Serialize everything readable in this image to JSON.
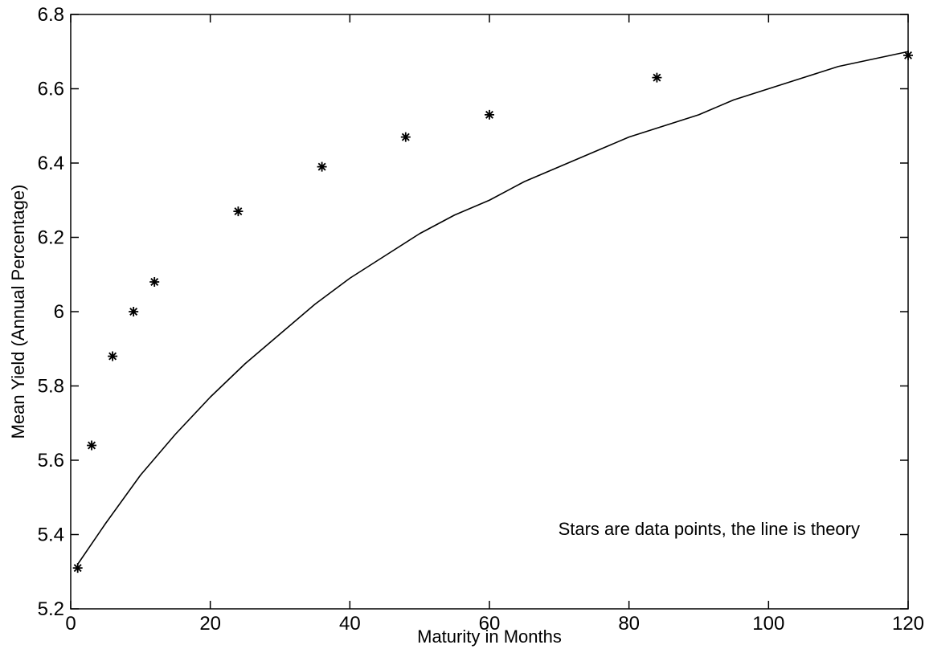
{
  "chart_data": {
    "type": "scatter",
    "title": "",
    "xlabel": "Maturity in Months",
    "ylabel": "Mean Yield (Annual Percentage)",
    "xlim": [
      0,
      120
    ],
    "ylim": [
      5.2,
      6.8
    ],
    "x_ticks": [
      0,
      20,
      40,
      60,
      80,
      100,
      120
    ],
    "y_ticks": [
      5.2,
      5.4,
      5.6,
      5.8,
      6,
      6.2,
      6.4,
      6.6,
      6.8
    ],
    "x_tick_labels": [
      "0",
      "20",
      "40",
      "60",
      "80",
      "100",
      "120"
    ],
    "y_tick_labels": [
      "5.2",
      "5.4",
      "5.6",
      "5.8",
      "6",
      "6.2",
      "6.4",
      "6.6",
      "6.8"
    ],
    "grid": false,
    "annotation": "Stars are data points, the line is theory",
    "series": [
      {
        "type": "scatter",
        "marker": "star",
        "x": [
          1,
          3,
          6,
          9,
          12,
          24,
          36,
          48,
          60,
          84,
          120
        ],
        "y": [
          5.31,
          5.64,
          5.88,
          6.0,
          6.08,
          6.27,
          6.39,
          6.47,
          6.53,
          6.63,
          6.69
        ]
      },
      {
        "type": "line",
        "x": [
          1,
          5,
          10,
          15,
          20,
          25,
          30,
          35,
          40,
          45,
          50,
          55,
          60,
          65,
          70,
          75,
          80,
          85,
          90,
          95,
          100,
          105,
          110,
          115,
          120
        ],
        "y": [
          5.32,
          5.43,
          5.56,
          5.67,
          5.77,
          5.86,
          5.94,
          6.02,
          6.09,
          6.15,
          6.21,
          6.26,
          6.3,
          6.35,
          6.39,
          6.43,
          6.47,
          6.5,
          6.53,
          6.57,
          6.6,
          6.63,
          6.66,
          6.68,
          6.7
        ]
      }
    ]
  }
}
